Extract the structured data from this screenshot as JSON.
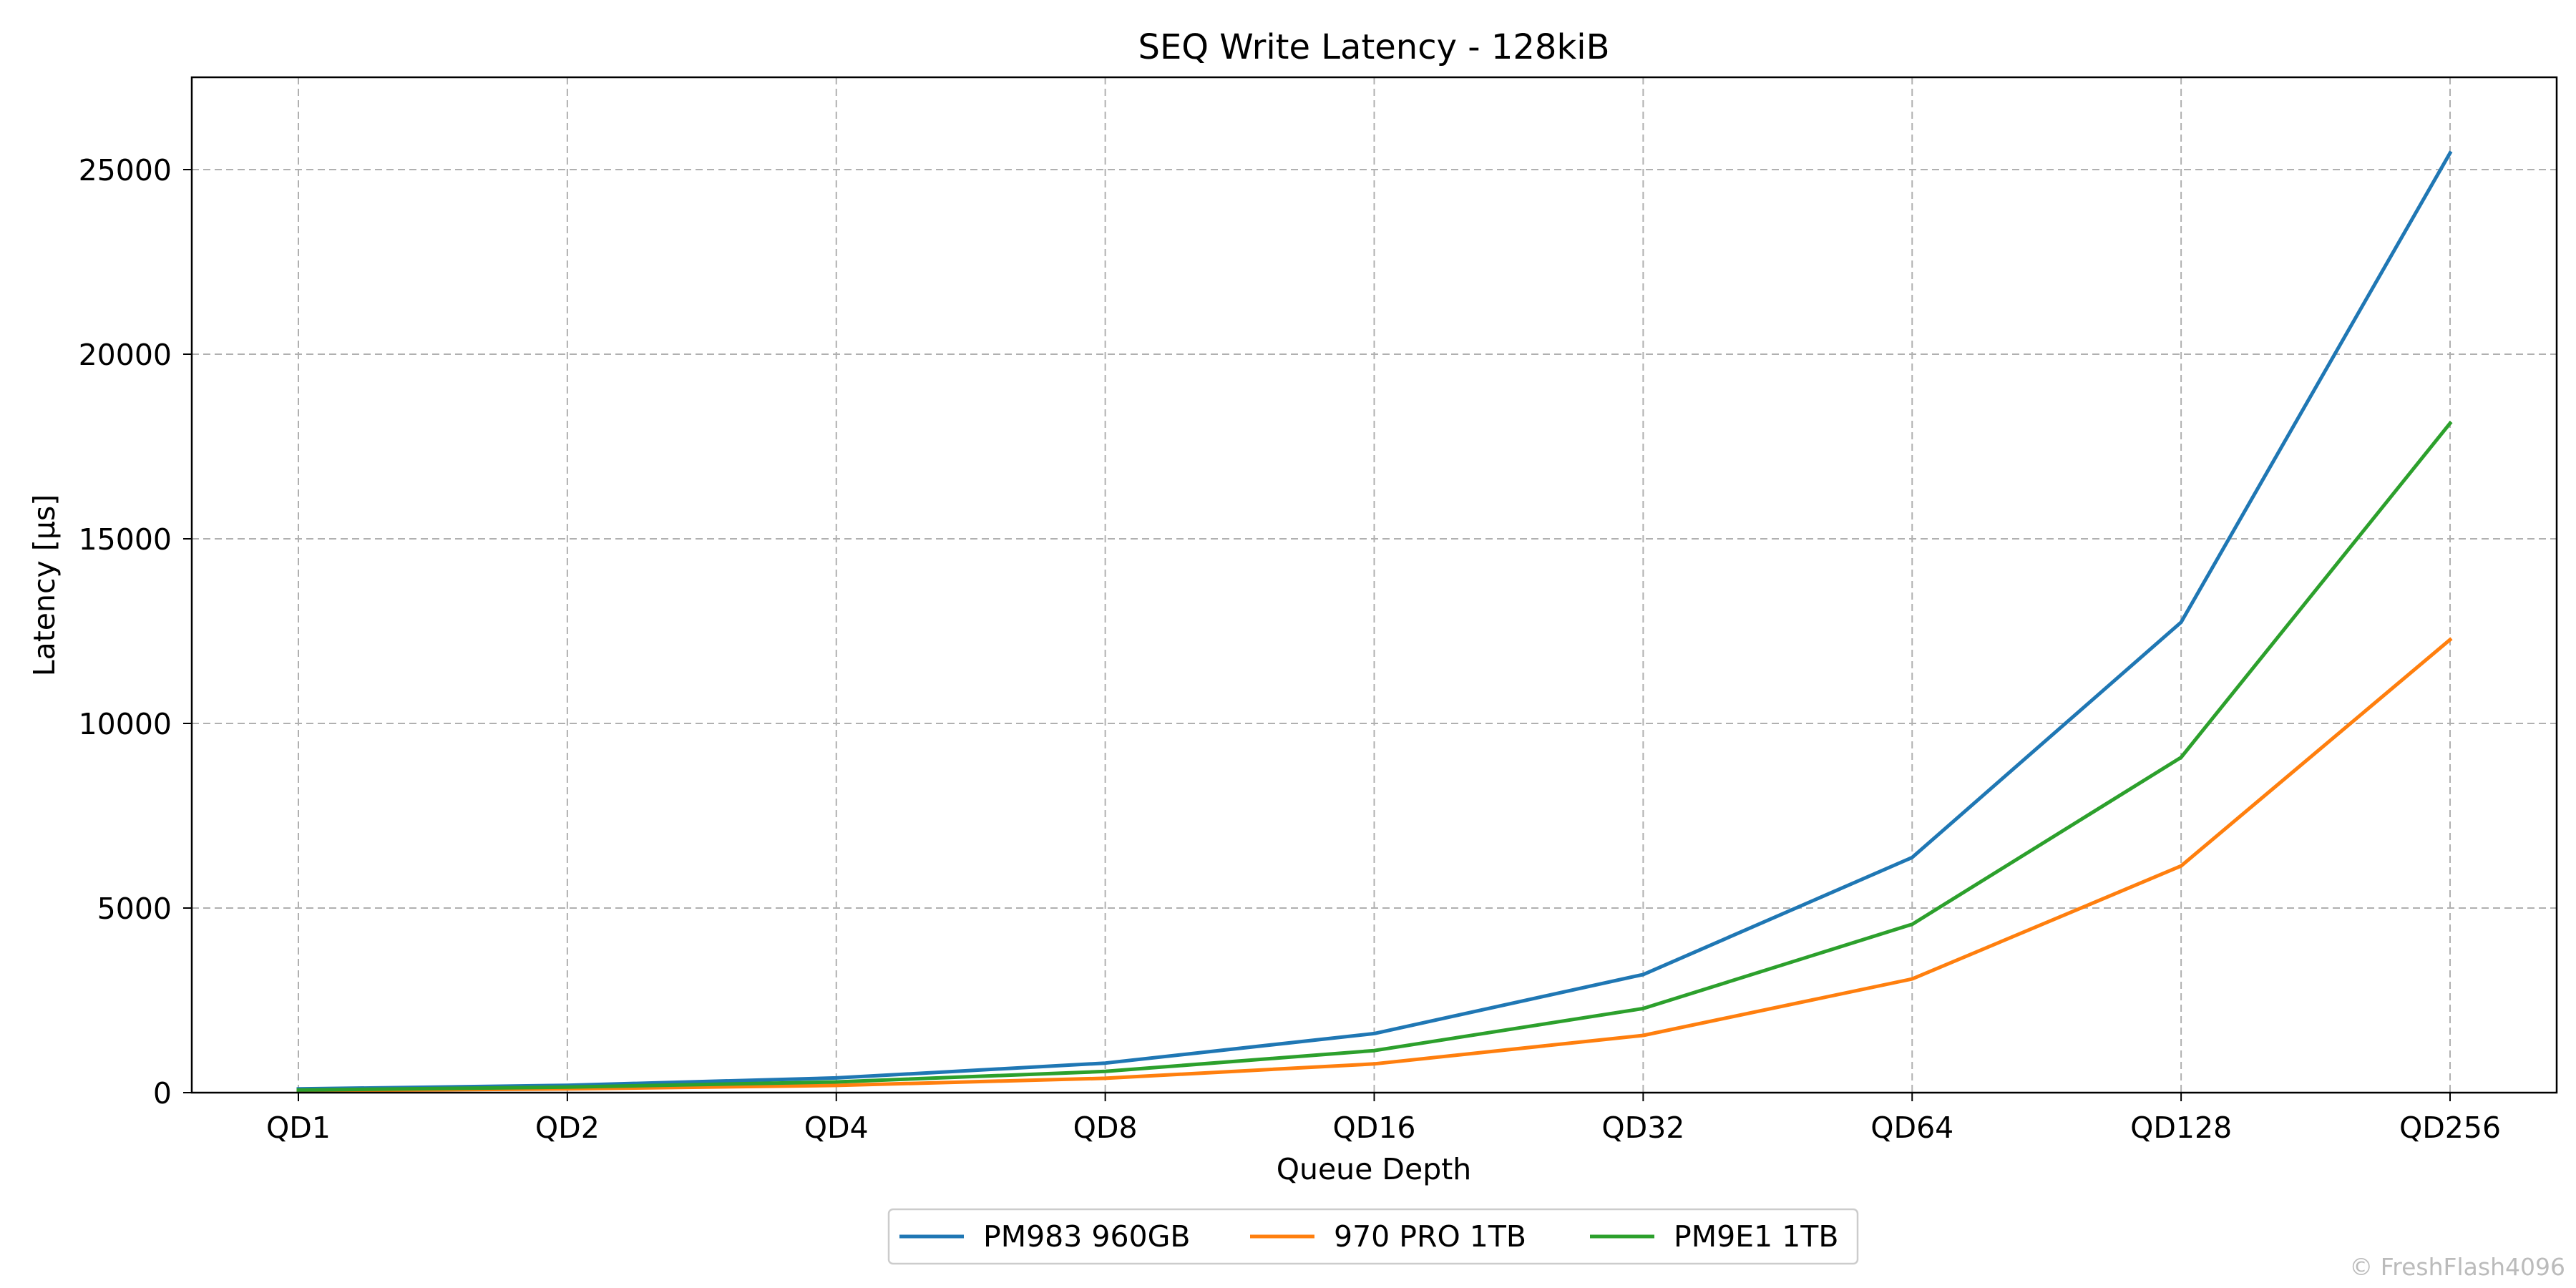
{
  "chart_data": {
    "type": "line",
    "title": "SEQ Write Latency - 128kiB",
    "xlabel": "Queue Depth",
    "ylabel": "Latency [µs]",
    "categories": [
      "QD1",
      "QD2",
      "QD4",
      "QD8",
      "QD16",
      "QD32",
      "QD64",
      "QD128",
      "QD256"
    ],
    "ylim": [
      0,
      27500
    ],
    "yticks": [
      0,
      5000,
      10000,
      15000,
      20000,
      25000
    ],
    "grid": true,
    "legend_position": "bottom-center",
    "series": [
      {
        "name": "PM983 960GB",
        "color": "#1f77b4",
        "values": [
          100,
          200,
          400,
          800,
          1600,
          3200,
          6370,
          12740,
          25450
        ]
      },
      {
        "name": "970 PRO 1TB",
        "color": "#ff7f0e",
        "values": [
          50,
          100,
          195,
          390,
          780,
          1550,
          3080,
          6140,
          12270
        ]
      },
      {
        "name": "PM9E1 1TB",
        "color": "#2ca02c",
        "values": [
          70,
          150,
          290,
          575,
          1140,
          2280,
          4560,
          9080,
          18130
        ]
      }
    ]
  },
  "watermark": "© FreshFlash4096"
}
